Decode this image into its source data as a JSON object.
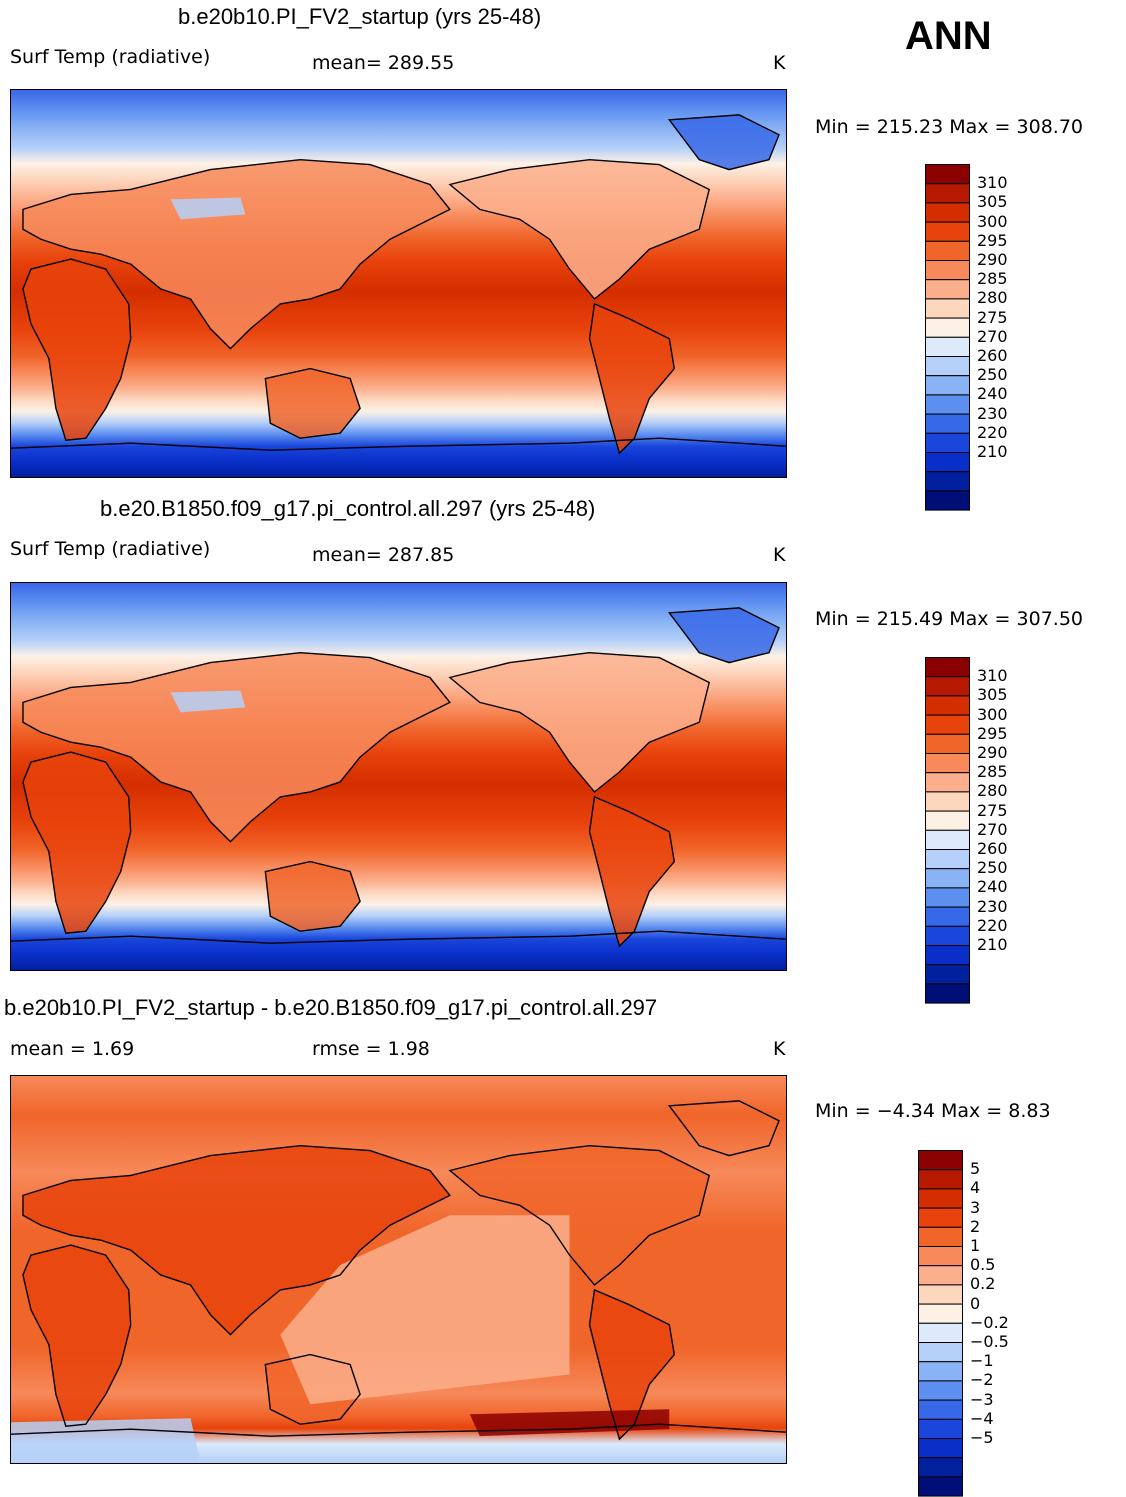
{
  "season": "ANN",
  "panels": [
    {
      "title": "b.e20b10.PI_FV2_startup (yrs 25-48)",
      "variable": "Surf Temp (radiative)",
      "stat1": "mean=  289.55",
      "stat2": "",
      "units": "K",
      "minmax": "Min = 215.23 Max = 308.70",
      "levels": [
        "310",
        "305",
        "300",
        "295",
        "290",
        "285",
        "280",
        "275",
        "270",
        "260",
        "250",
        "240",
        "230",
        "220",
        "210"
      ],
      "colors": [
        "#8b0000",
        "#b51a00",
        "#d42e00",
        "#e8430c",
        "#f0652a",
        "#f7895a",
        "#fcaf8c",
        "#fdd6be",
        "#fdf1e6",
        "#dceafb",
        "#b5d0f8",
        "#8ab3f5",
        "#5d8ff0",
        "#3768e8",
        "#1a46dc",
        "#0a2fc8",
        "#00209e",
        "#000f78"
      ],
      "type": "abs"
    },
    {
      "title": "b.e20.B1850.f09_g17.pi_control.all.297 (yrs 25-48)",
      "variable": "Surf Temp (radiative)",
      "stat1": "mean=  287.85",
      "stat2": "",
      "units": "K",
      "minmax": "Min = 215.49 Max = 307.50",
      "levels": [
        "310",
        "305",
        "300",
        "295",
        "290",
        "285",
        "280",
        "275",
        "270",
        "260",
        "250",
        "240",
        "230",
        "220",
        "210"
      ],
      "colors": [
        "#8b0000",
        "#b51a00",
        "#d42e00",
        "#e8430c",
        "#f0652a",
        "#f7895a",
        "#fcaf8c",
        "#fdd6be",
        "#fdf1e6",
        "#dceafb",
        "#b5d0f8",
        "#8ab3f5",
        "#5d8ff0",
        "#3768e8",
        "#1a46dc",
        "#0a2fc8",
        "#00209e",
        "#000f78"
      ],
      "type": "abs"
    },
    {
      "title": "b.e20b10.PI_FV2_startup - b.e20.B1850.f09_g17.pi_control.all.297",
      "variable": "mean =    1.69",
      "stat1": "rmse =    1.98",
      "stat2": "",
      "units": "K",
      "minmax": "Min =   −4.34 Max =    8.83",
      "levels": [
        "5",
        "4",
        "3",
        "2",
        "1",
        "0.5",
        "0.2",
        "0",
        "−0.2",
        "−0.5",
        "−1",
        "−2",
        "−3",
        "−4",
        "−5"
      ],
      "colors": [
        "#8b0000",
        "#b51a00",
        "#d42e00",
        "#e8430c",
        "#f0652a",
        "#f7895a",
        "#fcaf8c",
        "#fdd6be",
        "#fdf1e6",
        "#dceafb",
        "#b5d0f8",
        "#8ab3f5",
        "#5d8ff0",
        "#3768e8",
        "#1a46dc",
        "#0a2fc8",
        "#00209e",
        "#000f78"
      ],
      "type": "diff"
    }
  ]
}
